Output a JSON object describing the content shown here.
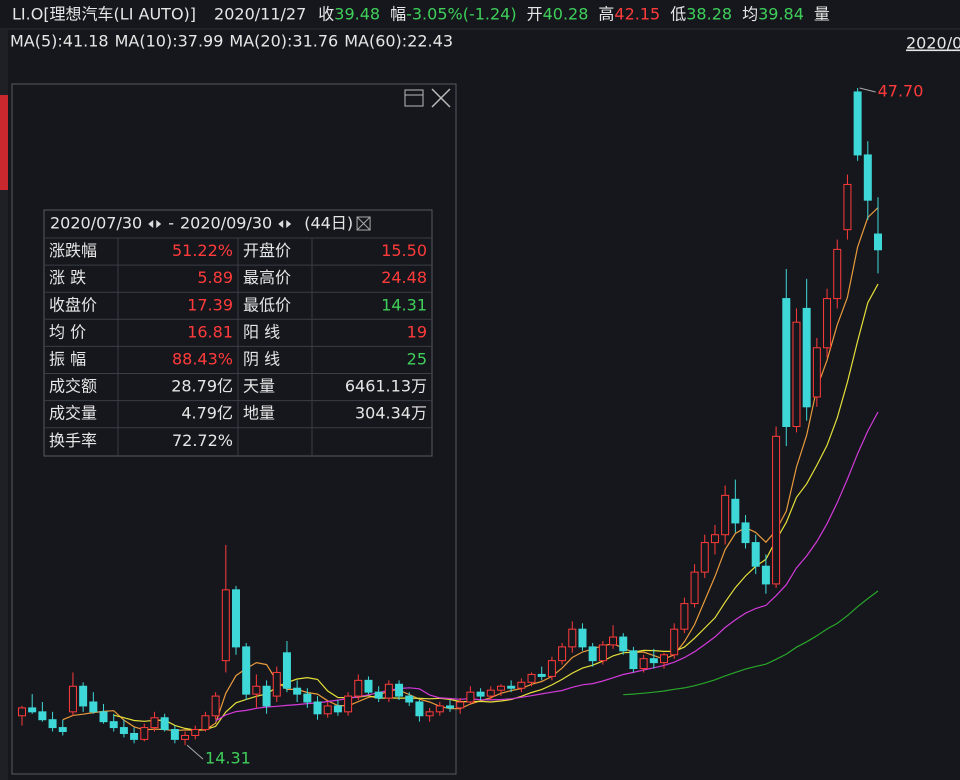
{
  "header": {
    "symbol": "LI.O[理想汽车(LI AUTO)]",
    "date": "2020/11/27",
    "items": [
      {
        "label": "收",
        "value": "39.48",
        "tone": "down"
      },
      {
        "label": "幅",
        "value": "-3.05%(-1.24)",
        "tone": "down"
      },
      {
        "label": "开",
        "value": "40.28",
        "tone": "down"
      },
      {
        "label": "高",
        "value": "42.15",
        "tone": "up"
      },
      {
        "label": "低",
        "value": "38.28",
        "tone": "down"
      },
      {
        "label": "均",
        "value": "39.84",
        "tone": "down"
      }
    ],
    "volume_label": "量",
    "corner_date": "2020/0"
  },
  "ma_legend": [
    {
      "label": "MA(5):41.18",
      "period": 5,
      "color": "#e89a3c"
    },
    {
      "label": "MA(10):37.99",
      "period": 10,
      "color": "#e6e03a"
    },
    {
      "label": "MA(20):31.76",
      "period": 20,
      "color": "#d23ad8"
    },
    {
      "label": "MA(60):22.43",
      "period": 60,
      "color": "#2aa52a"
    }
  ],
  "info_panel": {
    "start": "2020/07/30",
    "separator": "-",
    "end": "2020/09/30",
    "days": "(44日)",
    "rows": [
      [
        "涨跌幅",
        "51.22%",
        "开盘价",
        "15.50"
      ],
      [
        "涨 跌",
        "5.89",
        "最高价",
        "24.48"
      ],
      [
        "收盘价",
        "17.39",
        "最低价",
        "14.31"
      ],
      [
        "均 价",
        "16.81",
        "阳 线",
        "19"
      ],
      [
        "振 幅",
        "88.43%",
        "阴 线",
        "25"
      ],
      [
        "成交额",
        "28.79亿",
        "天量",
        "6461.13万"
      ],
      [
        "成交量",
        "4.79亿",
        "地量",
        "304.34万"
      ],
      [
        "换手率",
        "72.72%",
        "",
        ""
      ]
    ],
    "tones": [
      [
        "up",
        "up"
      ],
      [
        "up",
        "up"
      ],
      [
        "up",
        "down"
      ],
      [
        "up",
        "up"
      ],
      [
        "up",
        "down"
      ],
      [
        "plain",
        "plain"
      ],
      [
        "plain",
        "plain"
      ],
      [
        "plain",
        "plain"
      ]
    ]
  },
  "chart_data": {
    "type": "candlestick",
    "ylim": [
      12.79,
      50.14
    ],
    "up_color": "#ff3b3b",
    "down_color": "#3fd8d8",
    "annotations": [
      {
        "label": "47.70",
        "value": 47.7,
        "index": 82,
        "tone": "up"
      },
      {
        "label": "14.31",
        "value": 14.31,
        "index": 16,
        "tone": "down"
      }
    ],
    "candles": [
      [
        15.8,
        16.3,
        15.3,
        16.2
      ],
      [
        16.2,
        16.9,
        15.9,
        16.0
      ],
      [
        16.0,
        16.5,
        15.5,
        15.6
      ],
      [
        15.6,
        16.0,
        15.0,
        15.2
      ],
      [
        15.2,
        15.6,
        14.8,
        15.0
      ],
      [
        16.0,
        18.0,
        15.8,
        17.3
      ],
      [
        17.3,
        17.5,
        16.0,
        16.3
      ],
      [
        16.5,
        17.0,
        15.9,
        16.0
      ],
      [
        16.0,
        16.4,
        15.4,
        15.5
      ],
      [
        15.5,
        15.9,
        15.0,
        15.2
      ],
      [
        15.2,
        15.6,
        14.7,
        14.9
      ],
      [
        14.9,
        15.2,
        14.4,
        14.6
      ],
      [
        14.6,
        15.4,
        14.5,
        15.2
      ],
      [
        15.2,
        16.0,
        15.0,
        15.7
      ],
      [
        15.7,
        15.9,
        15.0,
        15.1
      ],
      [
        15.1,
        15.3,
        14.4,
        14.6
      ],
      [
        14.6,
        15.0,
        14.31,
        14.8
      ],
      [
        14.8,
        15.3,
        14.6,
        15.1
      ],
      [
        15.1,
        16.0,
        15.0,
        15.8
      ],
      [
        15.8,
        17.0,
        15.6,
        16.8
      ],
      [
        18.6,
        24.48,
        18.0,
        22.2
      ],
      [
        22.2,
        22.4,
        18.9,
        19.3
      ],
      [
        19.3,
        19.5,
        16.6,
        16.9
      ],
      [
        16.9,
        17.9,
        16.2,
        17.3
      ],
      [
        17.3,
        17.6,
        15.9,
        16.3
      ],
      [
        16.8,
        18.3,
        16.5,
        18.0
      ],
      [
        19.0,
        19.6,
        17.0,
        17.2
      ],
      [
        17.2,
        17.6,
        16.5,
        16.9
      ],
      [
        16.9,
        17.2,
        16.2,
        16.5
      ],
      [
        16.5,
        16.8,
        15.6,
        15.9
      ],
      [
        15.9,
        16.5,
        15.7,
        16.3
      ],
      [
        16.3,
        16.6,
        15.8,
        16.0
      ],
      [
        16.0,
        17.0,
        15.8,
        16.8
      ],
      [
        16.8,
        17.9,
        16.6,
        17.6
      ],
      [
        17.6,
        17.8,
        16.9,
        17.0
      ],
      [
        17.0,
        17.3,
        16.5,
        16.7
      ],
      [
        16.7,
        17.6,
        16.5,
        17.4
      ],
      [
        17.4,
        17.6,
        16.6,
        16.8
      ],
      [
        16.8,
        17.0,
        16.3,
        16.5
      ],
      [
        16.5,
        16.6,
        15.5,
        15.8
      ],
      [
        15.8,
        16.2,
        15.5,
        16.0
      ],
      [
        16.0,
        16.5,
        15.8,
        16.3
      ],
      [
        16.3,
        16.6,
        16.0,
        16.2
      ],
      [
        16.2,
        16.7,
        15.9,
        16.5
      ],
      [
        16.5,
        17.3,
        16.4,
        17.0
      ],
      [
        17.0,
        17.2,
        16.6,
        16.8
      ],
      [
        16.8,
        17.3,
        16.6,
        17.1
      ],
      [
        17.1,
        17.4,
        16.8,
        17.3
      ],
      [
        17.3,
        17.6,
        17.0,
        17.2
      ],
      [
        17.2,
        17.7,
        17.0,
        17.5
      ],
      [
        17.5,
        18.0,
        17.3,
        17.9
      ],
      [
        17.9,
        18.3,
        17.6,
        17.8
      ],
      [
        17.8,
        18.8,
        17.6,
        18.6
      ],
      [
        18.6,
        19.5,
        18.4,
        19.3
      ],
      [
        19.3,
        20.6,
        19.0,
        20.2
      ],
      [
        20.2,
        20.5,
        19.1,
        19.3
      ],
      [
        19.3,
        19.5,
        18.3,
        18.6
      ],
      [
        18.6,
        19.6,
        18.4,
        19.4
      ],
      [
        19.4,
        20.4,
        19.2,
        19.8
      ],
      [
        19.8,
        20.0,
        18.9,
        19.1
      ],
      [
        19.1,
        19.3,
        18.0,
        18.2
      ],
      [
        18.2,
        18.9,
        18.0,
        18.7
      ],
      [
        18.7,
        19.2,
        18.2,
        18.5
      ],
      [
        18.5,
        19.0,
        18.2,
        18.9
      ],
      [
        18.9,
        20.5,
        18.7,
        20.2
      ],
      [
        20.2,
        21.8,
        20.0,
        21.5
      ],
      [
        21.5,
        23.5,
        21.3,
        23.1
      ],
      [
        23.1,
        25.0,
        22.8,
        24.6
      ],
      [
        24.6,
        25.5,
        24.0,
        25.0
      ],
      [
        25.0,
        27.5,
        24.5,
        27.0
      ],
      [
        26.8,
        27.8,
        25.1,
        25.6
      ],
      [
        25.6,
        26.0,
        24.3,
        24.6
      ],
      [
        24.6,
        25.0,
        23.0,
        23.4
      ],
      [
        23.4,
        24.0,
        22.0,
        22.5
      ],
      [
        22.5,
        30.5,
        22.3,
        30.0
      ],
      [
        37.0,
        38.5,
        29.5,
        30.5
      ],
      [
        30.5,
        36.5,
        30.2,
        35.8
      ],
      [
        36.5,
        38.0,
        30.8,
        31.5
      ],
      [
        32.0,
        35.0,
        31.5,
        34.5
      ],
      [
        34.5,
        37.5,
        34.0,
        37.0
      ],
      [
        37.0,
        40.0,
        36.5,
        39.5
      ],
      [
        40.5,
        43.3,
        40.0,
        42.8
      ],
      [
        47.5,
        47.7,
        44.0,
        44.3
      ],
      [
        44.3,
        45.0,
        41.0,
        42.0
      ],
      [
        40.28,
        42.15,
        38.28,
        39.48
      ]
    ]
  }
}
